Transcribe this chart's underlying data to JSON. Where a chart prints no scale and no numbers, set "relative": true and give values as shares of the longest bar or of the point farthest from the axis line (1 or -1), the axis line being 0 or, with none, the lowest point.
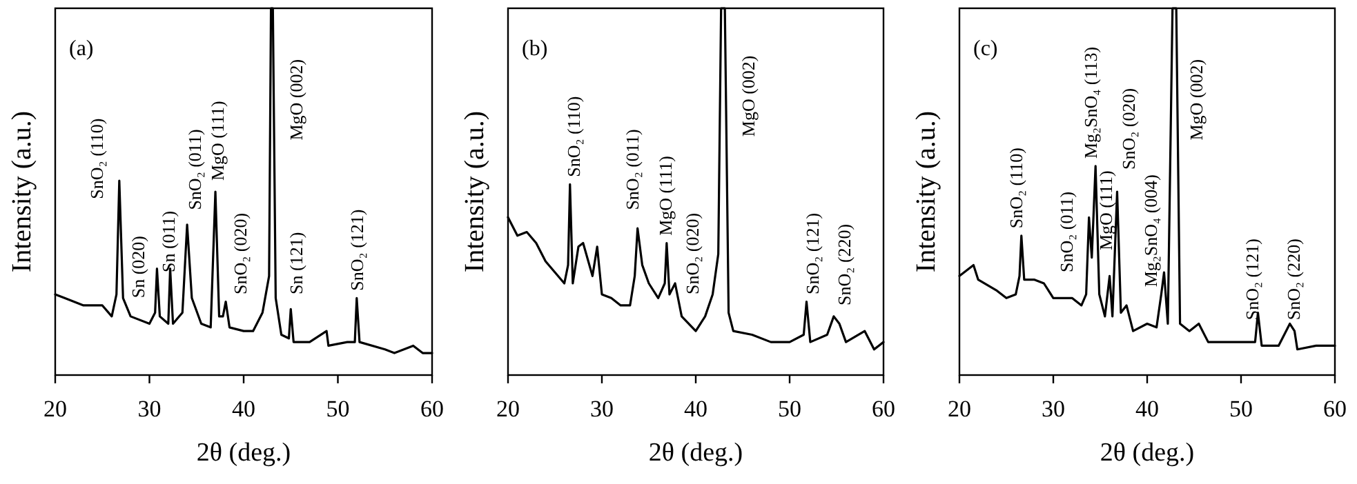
{
  "chart_data": [
    {
      "type": "line",
      "title": "(a)",
      "xlabel": "2θ (deg.)",
      "ylabel": "Intensity (a.u.)",
      "relative": true,
      "xlim": [
        20,
        60
      ],
      "xticks": [
        20,
        30,
        40,
        50,
        60
      ],
      "color": "#000000",
      "x": [
        20,
        21,
        23,
        25,
        26,
        26.5,
        26.8,
        27.2,
        28,
        30,
        30.6,
        30.8,
        31.1,
        32,
        32.2,
        32.5,
        33.5,
        34,
        34.5,
        35.5,
        36.5,
        37,
        37.4,
        37.8,
        38.1,
        38.5,
        40,
        41,
        42,
        42.7,
        42.9,
        43.1,
        43.4,
        44,
        44.8,
        45,
        45.3,
        47,
        48.8,
        49,
        51,
        51.8,
        52,
        52.3,
        55,
        56,
        58,
        59,
        60
      ],
      "values": [
        0.22,
        0.21,
        0.19,
        0.19,
        0.16,
        0.22,
        0.53,
        0.21,
        0.16,
        0.14,
        0.17,
        0.29,
        0.16,
        0.14,
        0.29,
        0.14,
        0.17,
        0.41,
        0.21,
        0.14,
        0.13,
        0.5,
        0.16,
        0.16,
        0.2,
        0.13,
        0.12,
        0.12,
        0.17,
        0.27,
        1,
        1,
        0.21,
        0.11,
        0.1,
        0.18,
        0.09,
        0.09,
        0.12,
        0.08,
        0.09,
        0.09,
        0.21,
        0.09,
        0.07,
        0.06,
        0.08,
        0.06,
        0.06
      ],
      "annotations": [
        "SnO₂ (110)",
        "Sn (020)",
        "Sn (011)",
        "SnO₂ (011)",
        "MgO (111)",
        "SnO₂ (020)",
        "MgO (002)",
        "Sn (121)",
        "SnO₂ (121)"
      ]
    },
    {
      "type": "line",
      "title": "(b)",
      "xlabel": "2θ (deg.)",
      "ylabel": "Intensity (a.u.)",
      "relative": true,
      "xlim": [
        20,
        60
      ],
      "xticks": [
        20,
        30,
        40,
        50,
        60
      ],
      "color": "#000000",
      "x": [
        20,
        21,
        22,
        23,
        24,
        25,
        26,
        26.4,
        26.6,
        26.9,
        27.5,
        28,
        29,
        29.5,
        30,
        31,
        32,
        33,
        33.5,
        33.8,
        34.3,
        35,
        36,
        36.7,
        36.9,
        37.2,
        37.8,
        38.5,
        40,
        41,
        41.8,
        42.4,
        42.7,
        43.1,
        43.5,
        44,
        46,
        48,
        50,
        51.5,
        51.8,
        52.2,
        54,
        54.7,
        55.3,
        56,
        58,
        59,
        60
      ],
      "values": [
        0.43,
        0.38,
        0.39,
        0.36,
        0.31,
        0.28,
        0.25,
        0.3,
        0.52,
        0.25,
        0.35,
        0.36,
        0.27,
        0.35,
        0.22,
        0.21,
        0.19,
        0.19,
        0.27,
        0.4,
        0.3,
        0.25,
        0.21,
        0.25,
        0.36,
        0.22,
        0.25,
        0.16,
        0.12,
        0.16,
        0.22,
        0.33,
        1,
        1,
        0.17,
        0.12,
        0.11,
        0.09,
        0.09,
        0.11,
        0.2,
        0.09,
        0.11,
        0.16,
        0.14,
        0.09,
        0.12,
        0.07,
        0.09
      ],
      "annotations": [
        "SnO₂ (110)",
        "SnO₂ (011)",
        "MgO (111)",
        "SnO₂ (020)",
        "MgO (002)",
        "SnO₂ (121)",
        "SnO₂ (220)"
      ]
    },
    {
      "type": "line",
      "title": "(c)",
      "xlabel": "2θ (deg.)",
      "ylabel": "Intensity (a.u.)",
      "relative": true,
      "xlim": [
        20,
        60
      ],
      "xticks": [
        20,
        30,
        40,
        50,
        60
      ],
      "color": "#000000",
      "x": [
        20,
        21.5,
        22,
        24,
        25,
        26,
        26.4,
        26.6,
        26.9,
        28,
        29,
        30,
        32,
        33,
        33.5,
        33.8,
        34.1,
        34.5,
        34.9,
        35.5,
        36,
        36.3,
        36.8,
        37.2,
        37.8,
        38.5,
        40,
        41,
        41.5,
        41.8,
        42.2,
        42.7,
        43.1,
        43.5,
        44.5,
        45.5,
        46.5,
        48,
        50,
        51.5,
        51.8,
        52.2,
        54,
        55.2,
        55.7,
        56,
        58,
        60
      ],
      "values": [
        0.27,
        0.3,
        0.26,
        0.23,
        0.21,
        0.22,
        0.27,
        0.38,
        0.26,
        0.26,
        0.25,
        0.21,
        0.21,
        0.19,
        0.22,
        0.43,
        0.32,
        0.57,
        0.22,
        0.16,
        0.27,
        0.16,
        0.5,
        0.17,
        0.19,
        0.12,
        0.14,
        0.13,
        0.22,
        0.28,
        0.14,
        1,
        1,
        0.14,
        0.12,
        0.14,
        0.09,
        0.09,
        0.09,
        0.09,
        0.17,
        0.08,
        0.08,
        0.14,
        0.12,
        0.07,
        0.08,
        0.08
      ],
      "annotations": [
        "SnO₂ (110)",
        "SnO₂ (011)",
        "Mg₂SnO₄ (113)",
        "MgO (111)",
        "SnO₂ (020)",
        "Mg₂SnO₄ (004)",
        "MgO (002)",
        "SnO₂ (121)",
        "SnO₂ (220)"
      ]
    }
  ]
}
